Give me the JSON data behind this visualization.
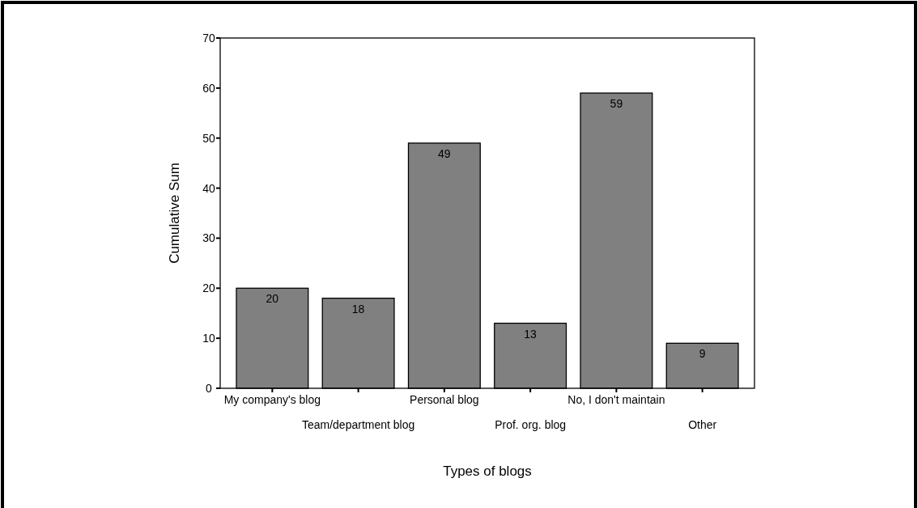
{
  "chart_data": {
    "type": "bar",
    "xlabel": "Types of blogs",
    "ylabel": "Cumulative Sum",
    "categories": [
      "My company's blog",
      "Team/department blog",
      "Personal blog",
      "Prof. org. blog",
      "No, I don't maintain",
      "Other"
    ],
    "values": [
      20,
      18,
      49,
      13,
      59,
      9
    ],
    "color": "#808080",
    "ylim": [
      0,
      70
    ],
    "yticks": [
      0,
      10,
      20,
      30,
      40,
      50,
      60,
      70
    ],
    "grid": false,
    "data_labels": true
  }
}
